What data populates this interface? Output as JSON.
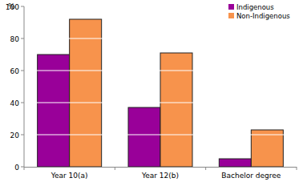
{
  "chart_data": {
    "type": "bar",
    "y_label": "%",
    "categories": [
      "Year 10(a)",
      "Year 12(b)",
      "Bachelor degree"
    ],
    "series": [
      {
        "name": "Indigenous",
        "color": "#990099",
        "values": [
          70,
          37,
          5
        ]
      },
      {
        "name": "Non-Indigenous",
        "color": "#f7934c",
        "values": [
          92,
          71,
          23
        ]
      }
    ],
    "ylim": [
      0,
      100
    ],
    "yticks": [
      0,
      20,
      40,
      60,
      80,
      100
    ],
    "grid": true,
    "legend": "top-right"
  }
}
